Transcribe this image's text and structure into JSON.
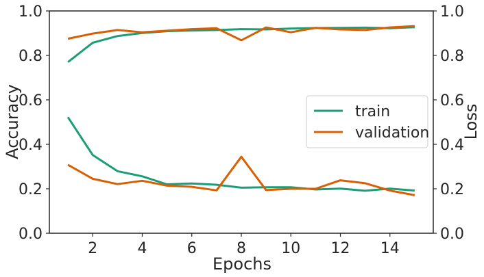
{
  "chart_data": {
    "type": "line",
    "xlabel": "Epochs",
    "ylabel_left": "Accuracy",
    "ylabel_right": "Loss",
    "xlim": [
      0.25,
      15.75
    ],
    "ylim_left": [
      0.0,
      1.0
    ],
    "ylim_right": [
      0.0,
      1.0
    ],
    "x_ticks": [
      2,
      4,
      6,
      8,
      10,
      12,
      14
    ],
    "x_tick_labels": [
      "2",
      "4",
      "6",
      "8",
      "10",
      "12",
      "14"
    ],
    "y_ticks": [
      0.0,
      0.2,
      0.4,
      0.6,
      0.8,
      1.0
    ],
    "y_tick_labels": [
      "0.0",
      "0.2",
      "0.4",
      "0.6",
      "0.8",
      "1.0"
    ],
    "grid": false,
    "legend_position": "center-right",
    "x": [
      1,
      2,
      3,
      4,
      5,
      6,
      7,
      8,
      9,
      10,
      11,
      12,
      13,
      14,
      15
    ],
    "series": [
      {
        "name": "train",
        "key": "train_accuracy",
        "color": "#1b9e77",
        "axis": "left",
        "values": [
          0.77,
          0.857,
          0.887,
          0.901,
          0.909,
          0.912,
          0.914,
          0.918,
          0.917,
          0.921,
          0.923,
          0.924,
          0.925,
          0.922,
          0.927
        ]
      },
      {
        "name": "validation",
        "key": "validation_accuracy",
        "color": "#d95f02",
        "axis": "left",
        "values": [
          0.875,
          0.898,
          0.914,
          0.904,
          0.911,
          0.918,
          0.922,
          0.868,
          0.926,
          0.904,
          0.924,
          0.917,
          0.914,
          0.926,
          0.932
        ]
      },
      {
        "name": "",
        "key": "train_loss",
        "color": "#1b9e77",
        "axis": "right",
        "values": [
          0.522,
          0.352,
          0.279,
          0.256,
          0.22,
          0.224,
          0.218,
          0.205,
          0.207,
          0.207,
          0.197,
          0.201,
          0.191,
          0.201,
          0.192
        ]
      },
      {
        "name": "",
        "key": "validation_loss",
        "color": "#d95f02",
        "axis": "right",
        "values": [
          0.308,
          0.245,
          0.221,
          0.236,
          0.214,
          0.209,
          0.193,
          0.344,
          0.194,
          0.2,
          0.2,
          0.238,
          0.225,
          0.192,
          0.171
        ]
      }
    ],
    "legend": [
      {
        "label": "train",
        "color": "#1b9e77"
      },
      {
        "label": "validation",
        "color": "#d95f02"
      }
    ]
  }
}
